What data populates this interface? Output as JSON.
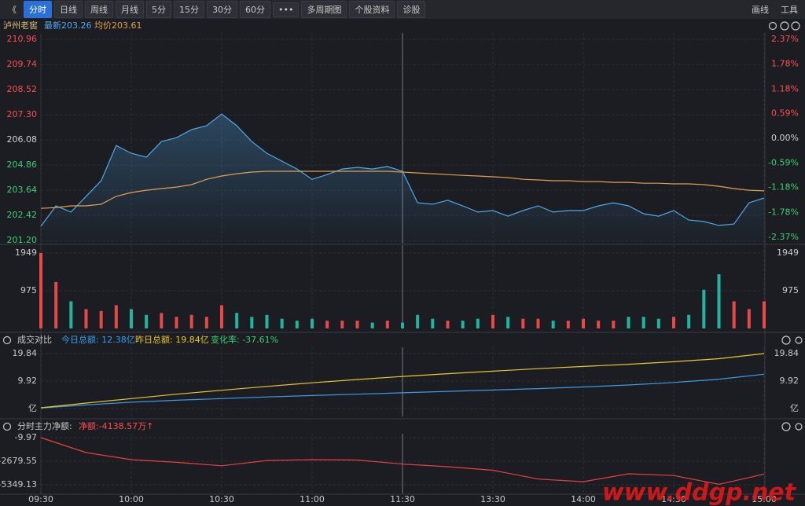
{
  "toolbar": {
    "back": "《",
    "tabs": [
      "分时",
      "日线",
      "周线",
      "月线",
      "5分",
      "15分",
      "30分",
      "60分",
      "•••",
      "多周期图",
      "个股资料",
      "诊股"
    ],
    "right": [
      "画线",
      "工具"
    ]
  },
  "watermark": "www.ddgp.net",
  "chart_data": [
    {
      "type": "line",
      "title": "泸州老窖",
      "annotations": [
        {
          "text": "最新203.26",
          "color": "#4fa8e8"
        },
        {
          "text": "均价203.61",
          "color": "#e0a050"
        }
      ],
      "x": [
        0,
        5,
        10,
        15,
        20,
        25,
        30,
        35,
        40,
        45,
        50,
        55,
        60,
        65,
        70,
        75,
        80,
        85,
        90,
        95,
        100,
        105,
        110,
        115,
        120,
        125,
        130,
        135,
        140,
        145,
        150,
        155,
        160,
        165,
        170,
        175,
        180,
        185,
        190,
        195,
        200,
        205,
        210,
        215,
        220,
        225,
        230,
        235,
        240
      ],
      "xlim": [
        0,
        240
      ],
      "xticks": [
        {
          "value": 0,
          "label": "09:30"
        },
        {
          "value": 30,
          "label": "10:00"
        },
        {
          "value": 60,
          "label": "10:30"
        },
        {
          "value": 90,
          "label": "11:00"
        },
        {
          "value": 120,
          "label": "11:30"
        },
        {
          "value": 150,
          "label": "13:30"
        },
        {
          "value": 180,
          "label": "14:00"
        },
        {
          "value": 210,
          "label": "14:30"
        },
        {
          "value": 240,
          "label": "15:00"
        }
      ],
      "ylim": [
        201.05,
        211.27
      ],
      "yticks": [
        210.96,
        209.74,
        208.52,
        {
          "value": 207.3,
          "label": "207.30"
        },
        206.08,
        204.86,
        203.64,
        202.42,
        {
          "value": 201.2,
          "label": "201.20"
        }
      ],
      "y2lim": [
        -2.52,
        2.52
      ],
      "y2ticks": [
        {
          "value": 2.37,
          "label": "2.37%"
        },
        {
          "value": 1.78,
          "label": "1.78%"
        },
        {
          "value": 1.18,
          "label": "1.18%"
        },
        {
          "value": 0.59,
          "label": "0.59%"
        },
        {
          "value": 0,
          "label": "0.00%"
        },
        {
          "value": -0.59,
          "label": "-0.59%"
        },
        {
          "value": -1.18,
          "label": "-1.18%"
        },
        {
          "value": -1.78,
          "label": "-1.78%"
        },
        {
          "value": -2.37,
          "label": "-2.37%"
        }
      ],
      "series": [
        {
          "color": "#4fa8e8",
          "values": [
            201.89,
            202.88,
            202.58,
            203.34,
            204.1,
            205.81,
            205.43,
            205.24,
            206.0,
            206.19,
            206.58,
            206.77,
            207.34,
            206.77,
            206.0,
            205.43,
            205.05,
            204.67,
            204.17,
            204.4,
            204.67,
            204.75,
            204.67,
            204.79,
            204.56,
            203.03,
            202.96,
            203.15,
            202.88,
            202.58,
            202.65,
            202.38,
            202.65,
            202.88,
            202.58,
            202.65,
            202.65,
            202.88,
            203.03,
            202.88,
            202.5,
            202.38,
            202.65,
            202.19,
            202.12,
            201.93,
            202.0,
            203.03,
            203.26
          ]
        },
        {
          "color": "#e0a050",
          "values": [
            202.76,
            202.8,
            202.88,
            202.88,
            202.96,
            203.34,
            203.53,
            203.64,
            203.72,
            203.79,
            203.91,
            204.17,
            204.33,
            204.44,
            204.52,
            204.56,
            204.56,
            204.56,
            204.56,
            204.56,
            204.56,
            204.56,
            204.56,
            204.56,
            204.52,
            204.48,
            204.44,
            204.4,
            204.36,
            204.33,
            204.29,
            204.25,
            204.17,
            204.14,
            204.1,
            204.1,
            204.06,
            204.06,
            204.02,
            204.02,
            203.98,
            203.98,
            203.95,
            203.95,
            203.91,
            203.83,
            203.72,
            203.64,
            203.61
          ]
        }
      ]
    },
    {
      "type": "bar",
      "ylim": [
        0,
        2152
      ],
      "yticks": [
        975,
        1949
      ],
      "up_color": "#e84848",
      "down_color": "#1fb5a0",
      "values": [
        1949,
        1200,
        700,
        500,
        450,
        600,
        500,
        350,
        400,
        300,
        350,
        300,
        600,
        400,
        300,
        350,
        250,
        200,
        250,
        200,
        200,
        200,
        150,
        200,
        150,
        350,
        250,
        200,
        200,
        250,
        350,
        300,
        250,
        250,
        200,
        200,
        250,
        200,
        200,
        300,
        300,
        250,
        300,
        350,
        1000,
        1400,
        700,
        500,
        700
      ]
    },
    {
      "type": "line",
      "title": "成交对比",
      "annotations": [
        {
          "text": "今日总额: 12.38亿",
          "color": "#3d9be9"
        },
        {
          "text": "昨日总额: 19.84亿",
          "color": "#e8c828"
        },
        {
          "text": "变化率: -37.61%",
          "color": "#3ccf6e"
        }
      ],
      "x": [
        0,
        15,
        30,
        45,
        60,
        75,
        90,
        105,
        120,
        135,
        150,
        165,
        180,
        195,
        210,
        225,
        240
      ],
      "xlim": [
        0,
        240
      ],
      "ylim": [
        -2.83,
        22.11
      ],
      "yticks": [
        {
          "value": 0,
          "label": "亿"
        },
        9.92,
        19.84
      ],
      "series": [
        {
          "color": "#3d9be9",
          "values": [
            0.2,
            1.3,
            2.3,
            3.0,
            3.6,
            4.2,
            4.7,
            5.2,
            5.7,
            6.2,
            6.7,
            7.2,
            7.8,
            8.5,
            9.4,
            10.6,
            12.38
          ]
        },
        {
          "color": "#e8c828",
          "values": [
            0.3,
            2.0,
            3.6,
            5.2,
            6.6,
            8.0,
            9.3,
            10.5,
            11.6,
            12.6,
            13.5,
            14.4,
            15.2,
            16.0,
            16.9,
            18.0,
            19.84
          ]
        }
      ]
    },
    {
      "type": "line",
      "title": "分时主力净额:",
      "annotations": [
        {
          "text": "净额:-4138.57万↑",
          "color": "#ff4d4d"
        }
      ],
      "x": [
        0,
        15,
        30,
        45,
        60,
        75,
        90,
        105,
        120,
        135,
        150,
        165,
        180,
        195,
        210,
        225,
        240
      ],
      "xlim": [
        0,
        240
      ],
      "ylim": [
        -6328,
        435
      ],
      "yticks": [
        -9.97,
        -2679.55,
        -5349.13
      ],
      "series": [
        {
          "color": "#e84040",
          "values": [
            -9.97,
            -1700,
            -2500,
            -2800,
            -3200,
            -2600,
            -2500,
            -2550,
            -3000,
            -3300,
            -3700,
            -4700,
            -5000,
            -4100,
            -4300,
            -5300,
            -4138.57
          ]
        }
      ]
    }
  ]
}
